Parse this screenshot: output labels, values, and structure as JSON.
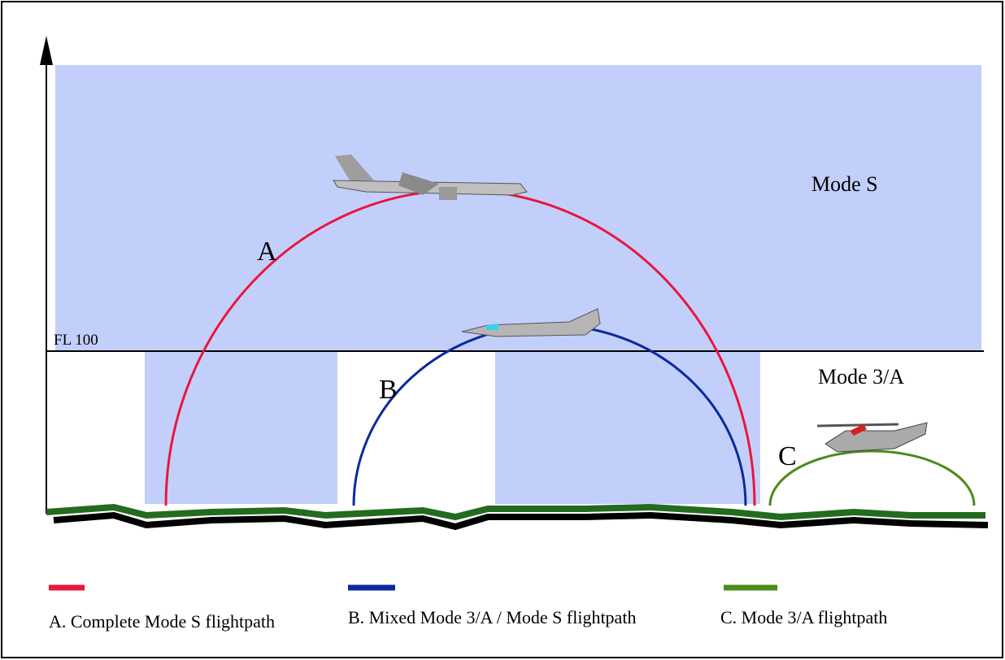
{
  "regions": {
    "upper": "Mode S",
    "lower": "Mode 3/A",
    "boundary": "FL 100"
  },
  "paths": [
    {
      "letter": "A"
    },
    {
      "letter": "B"
    },
    {
      "letter": "C"
    }
  ],
  "legend": [
    {
      "label": "A. Complete Mode S flightpath"
    },
    {
      "label": "B. Mixed Mode 3/A / Mode S flightpath"
    },
    {
      "label": "C. Mode 3/A flightpath"
    }
  ]
}
